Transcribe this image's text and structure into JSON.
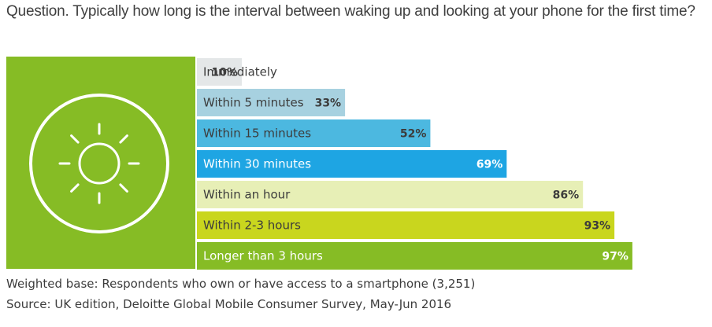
{
  "chart_data": {
    "type": "bar",
    "orientation": "horizontal",
    "title": "Question. Typically how long is the interval between waking up and looking at your phone for the first time?",
    "categories": [
      "Immediately",
      "Within 5 minutes",
      "Within 15 minutes",
      "Within 30 minutes",
      "Within an hour",
      "Within 2-3 hours",
      "Longer than 3 hours"
    ],
    "values": [
      10,
      33,
      52,
      69,
      86,
      93,
      97
    ],
    "value_labels": [
      "10%",
      "33%",
      "52%",
      "69%",
      "86%",
      "93%",
      "97%"
    ],
    "xlim": [
      0,
      100
    ],
    "grid": false,
    "legend": "none",
    "colors": [
      "#e4e7e8",
      "#a7d1e0",
      "#4cb8e0",
      "#1ea5e3",
      "#e7efb6",
      "#c9d61e",
      "#86bc25"
    ],
    "label_colors": [
      "#3c3c3c",
      "#3c3c3c",
      "#3c3c3c",
      "#ffffff",
      "#3c3c3c",
      "#3c3c3c",
      "#ffffff"
    ],
    "value_colors": [
      "#3c3c3c",
      "#3c3c3c",
      "#3c3c3c",
      "#ffffff",
      "#3c3c3c",
      "#3c3c3c",
      "#ffffff"
    ]
  },
  "footnotes": {
    "base": "Weighted base: Respondents who own or have access to a smartphone (3,251)",
    "source": "Source: UK edition, Deloitte Global Mobile Consumer Survey, May-Jun 2016"
  },
  "illustration": {
    "icon": "sun-icon",
    "panel_color": "#86bc25",
    "icon_color": "#ffffff"
  }
}
